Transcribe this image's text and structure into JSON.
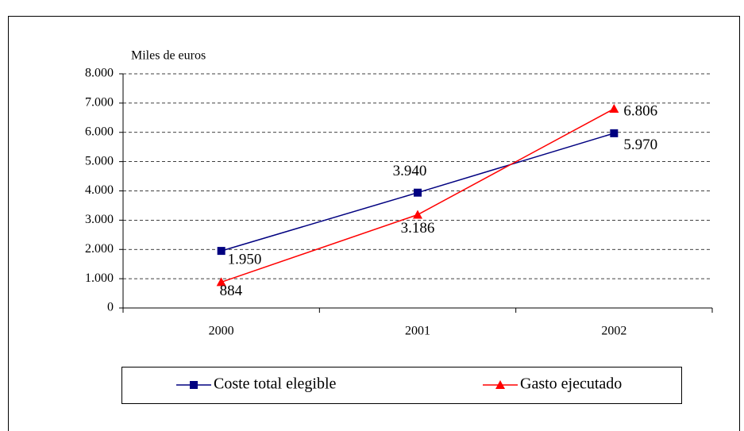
{
  "chart_data": {
    "type": "line",
    "y_label": "Miles de euros",
    "categories": [
      "2000",
      "2001",
      "2002"
    ],
    "series": [
      {
        "name": "Coste total elegible",
        "color": "#000080",
        "marker": "square",
        "values": [
          1950,
          3940,
          5970
        ],
        "value_labels": [
          "1.950",
          "3.940",
          "5.970"
        ]
      },
      {
        "name": "Gasto ejecutado",
        "color": "#ff0000",
        "marker": "triangle",
        "values": [
          884,
          3186,
          6806
        ],
        "value_labels": [
          "884",
          "3.186",
          "6.806"
        ]
      }
    ],
    "ylim": [
      0,
      8000
    ],
    "yticks": [
      0,
      {
        "value": 1000,
        "label": "1.000"
      },
      {
        "value": 2000,
        "label": "2.000"
      },
      {
        "value": 3000,
        "label": "3.000"
      },
      {
        "value": 4000,
        "label": "4.000"
      },
      {
        "value": 5000,
        "label": "5.000"
      },
      {
        "value": 6000,
        "label": "6.000"
      },
      {
        "value": 7000,
        "label": "7.000"
      },
      {
        "value": 8000,
        "label": "8.000"
      }
    ],
    "grid": true,
    "legend": "bottom"
  }
}
